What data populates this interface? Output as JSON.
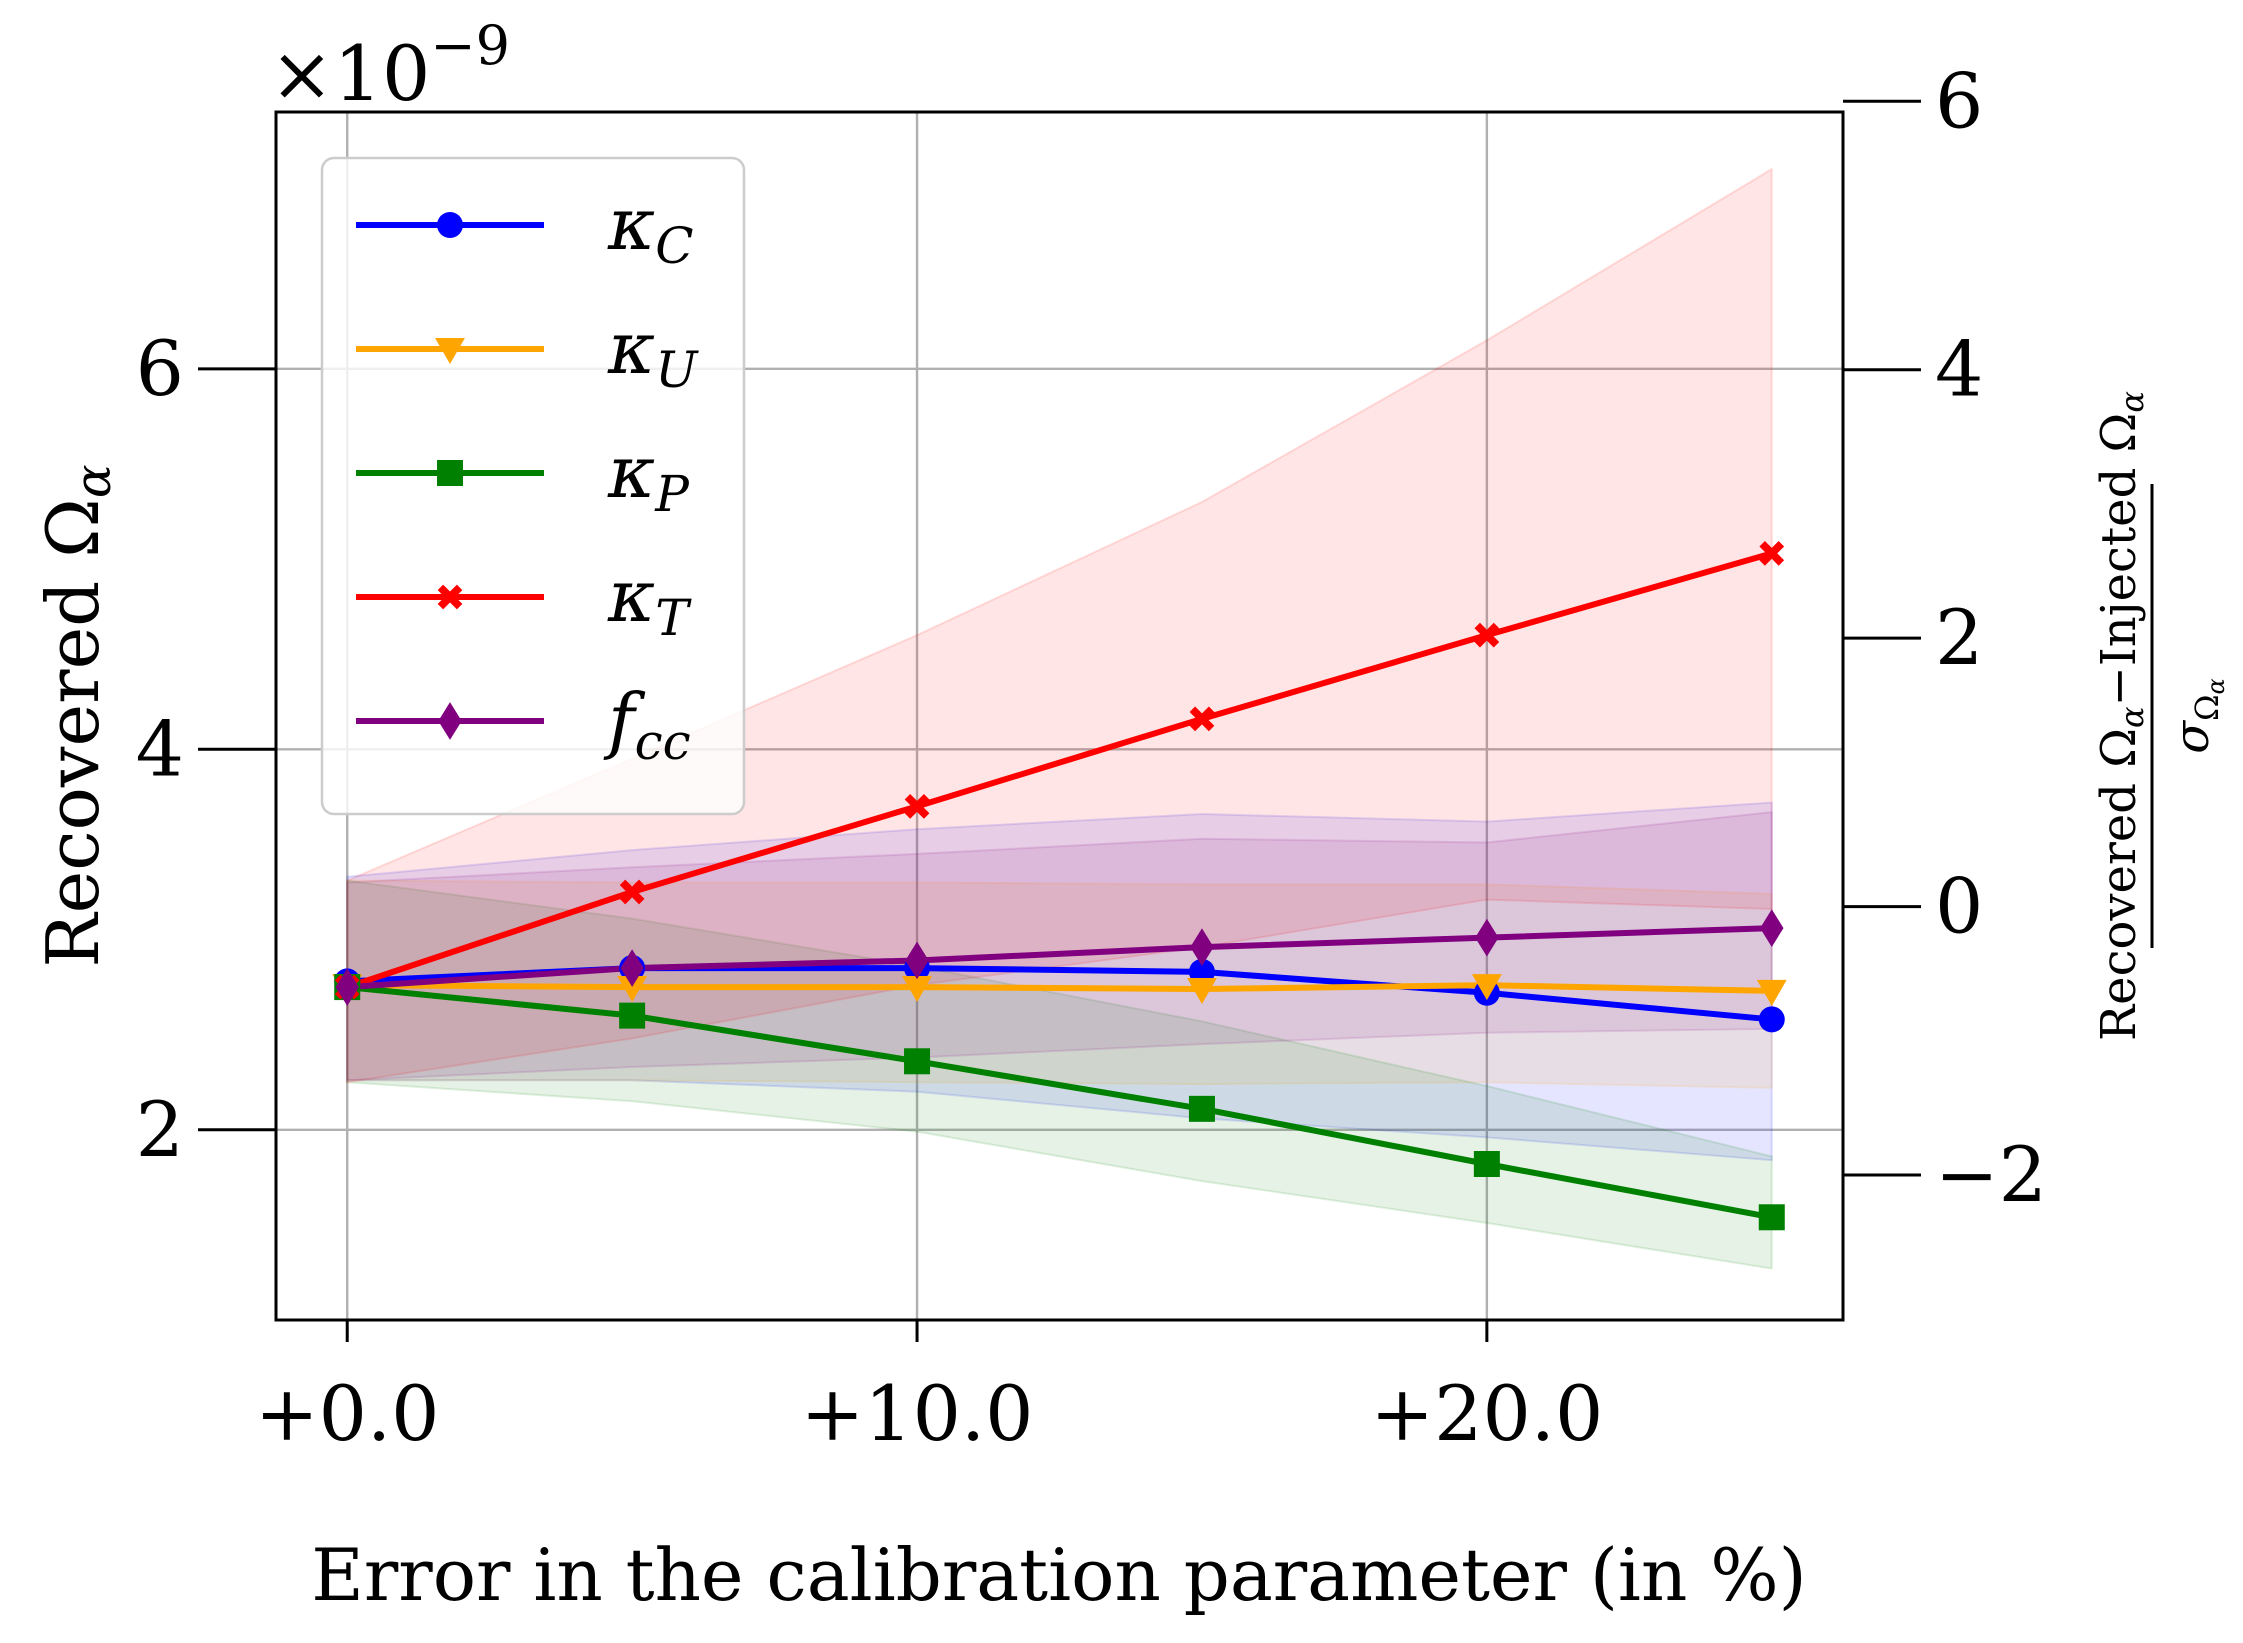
{
  "chart_data": {
    "type": "line",
    "xlabel": "Error in the calibration parameter (in %)",
    "ylabel": "Recovered Ω",
    "ylabel_sub": "α",
    "y_multiplier": "×10",
    "y_multiplier_exp": "−9",
    "y2label_num_a": "Recovered Ω",
    "y2label_num_b": "−Injected Ω",
    "y2label_den": "σ",
    "y2label_den_sub": "Ω",
    "y2label_den_subsub": "α",
    "y2label_alpha": "α",
    "x": [
      0,
      5,
      10,
      15,
      20,
      25
    ],
    "xlim": [
      -1.25,
      26.25
    ],
    "ylim": [
      1.0,
      7.35
    ],
    "y2lim": [
      -3.08,
      5.92
    ],
    "x_ticks": [
      0,
      10,
      20
    ],
    "x_tick_labels": [
      "+0.0",
      "+10.0",
      "+20.0"
    ],
    "y_ticks": [
      2,
      4,
      6
    ],
    "y_tick_labels": [
      "2",
      "4",
      "6"
    ],
    "y2_ticks": [
      -2,
      0,
      2,
      4,
      6
    ],
    "y2_tick_labels": [
      "−2",
      "0",
      "2",
      "4",
      "6"
    ],
    "grid": true,
    "legend_position": "upper-left",
    "series": [
      {
        "name": "κ",
        "sub": "C",
        "color": "#0000ff",
        "marker": "circle",
        "values": [
          2.78,
          2.85,
          2.85,
          2.83,
          2.72,
          2.58
        ],
        "upper": [
          3.33,
          3.47,
          3.58,
          3.66,
          3.62,
          3.72
        ],
        "lower": [
          2.26,
          2.26,
          2.2,
          2.06,
          1.96,
          1.84
        ]
      },
      {
        "name": "κ",
        "sub": "U",
        "color": "#ffa500",
        "marker": "triangle-down",
        "values": [
          2.76,
          2.75,
          2.75,
          2.74,
          2.76,
          2.73
        ],
        "upper": [
          3.31,
          3.3,
          3.3,
          3.29,
          3.29,
          3.24
        ],
        "lower": [
          2.26,
          2.26,
          2.25,
          2.24,
          2.25,
          2.22
        ]
      },
      {
        "name": "κ",
        "sub": "P",
        "color": "#008000",
        "marker": "square",
        "values": [
          2.75,
          2.6,
          2.36,
          2.11,
          1.82,
          1.54
        ],
        "upper": [
          3.31,
          3.11,
          2.86,
          2.57,
          2.23,
          1.86
        ],
        "lower": [
          2.25,
          2.15,
          1.99,
          1.73,
          1.51,
          1.27
        ]
      },
      {
        "name": "κ",
        "sub": "T",
        "color": "#ff0000",
        "marker": "x",
        "values": [
          2.75,
          3.25,
          3.7,
          4.16,
          4.6,
          5.03
        ],
        "upper": [
          3.31,
          3.95,
          4.6,
          5.3,
          6.15,
          7.05
        ],
        "lower": [
          2.25,
          2.48,
          2.76,
          2.96,
          3.21,
          3.16
        ]
      },
      {
        "name": "f",
        "sub": "cc",
        "color": "#800080",
        "marker": "diamond",
        "values": [
          2.75,
          2.85,
          2.89,
          2.96,
          3.01,
          3.06
        ],
        "upper": [
          3.3,
          3.38,
          3.45,
          3.53,
          3.51,
          3.67
        ],
        "lower": [
          2.26,
          2.33,
          2.38,
          2.45,
          2.51,
          2.53
        ]
      }
    ]
  }
}
